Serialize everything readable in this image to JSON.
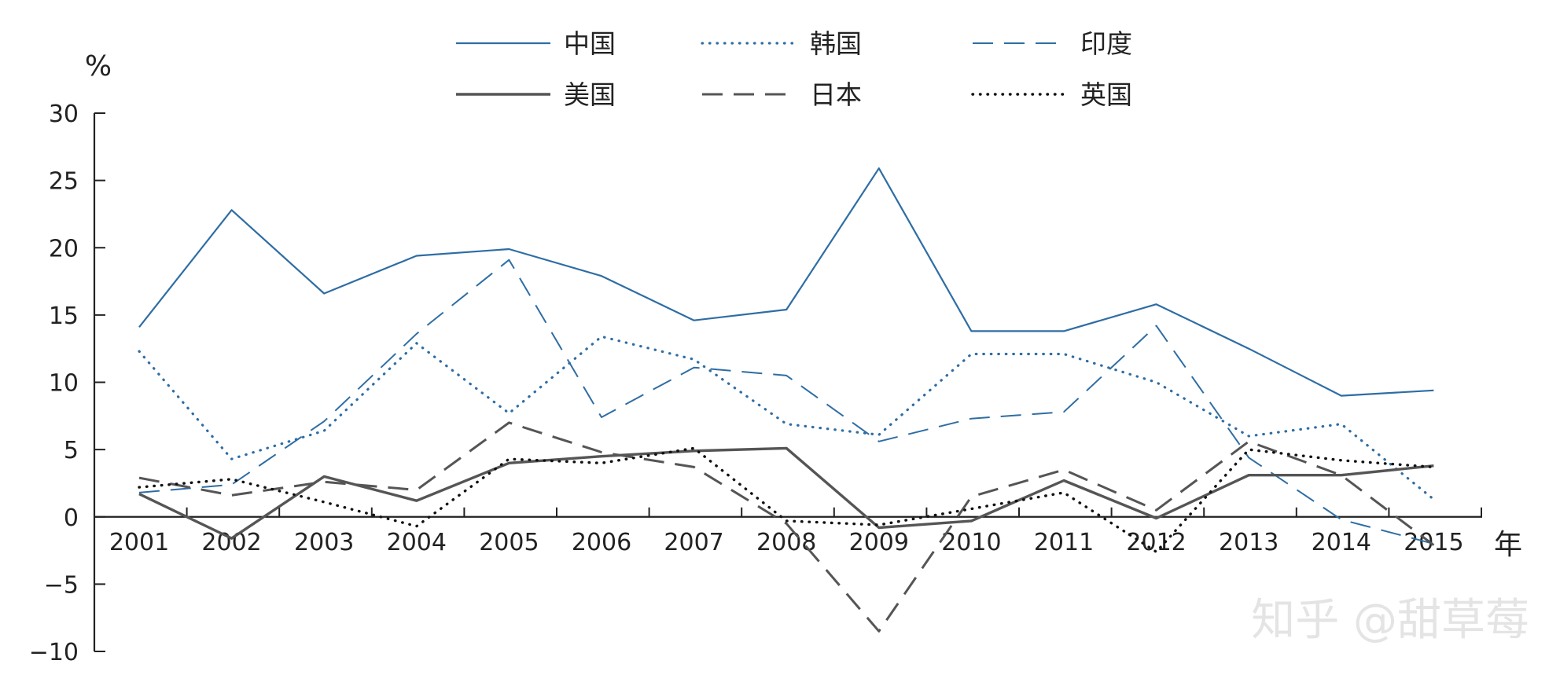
{
  "chart_data": {
    "type": "line",
    "title": "",
    "xlabel": "年",
    "ylabel": "%",
    "categories": [
      "2001",
      "2002",
      "2003",
      "2004",
      "2005",
      "2006",
      "2007",
      "2008",
      "2009",
      "2010",
      "2011",
      "2012",
      "2013",
      "2014",
      "2015"
    ],
    "ylim": [
      -10,
      30
    ],
    "yticks": [
      -10,
      -5,
      0,
      5,
      10,
      15,
      20,
      25,
      30
    ],
    "ytick_labels": [
      "−10",
      "−5",
      "0",
      "5",
      "10",
      "15",
      "20",
      "25",
      "30"
    ],
    "grid": false,
    "legend_position": "top",
    "series": [
      {
        "name": "中国",
        "color": "#2e6da4",
        "style": "solid",
        "values": [
          14.1,
          22.8,
          16.6,
          19.4,
          19.9,
          17.9,
          14.6,
          15.4,
          25.9,
          13.8,
          13.8,
          15.8,
          12.5,
          9.0,
          9.4
        ]
      },
      {
        "name": "韩国",
        "color": "#2e6da4",
        "style": "dotted",
        "values": [
          12.3,
          4.3,
          6.4,
          12.9,
          7.7,
          13.4,
          11.7,
          6.9,
          6.1,
          12.1,
          12.1,
          10.0,
          6.0,
          6.9,
          1.3
        ]
      },
      {
        "name": "印度",
        "color": "#2e6da4",
        "style": "dashed",
        "values": [
          1.8,
          2.4,
          7.1,
          13.6,
          19.1,
          7.4,
          11.1,
          10.5,
          5.6,
          7.3,
          7.8,
          14.2,
          4.4,
          -0.2,
          -2.0
        ]
      },
      {
        "name": "美国",
        "color": "#555555",
        "style": "solid",
        "values": [
          1.7,
          -1.6,
          3.0,
          1.2,
          4.0,
          4.5,
          4.9,
          5.1,
          -0.8,
          -0.3,
          2.7,
          -0.1,
          3.1,
          3.1,
          3.8
        ]
      },
      {
        "name": "日本",
        "color": "#555555",
        "style": "dashed",
        "values": [
          2.9,
          1.6,
          2.6,
          2.0,
          7.0,
          4.8,
          3.7,
          -0.5,
          -8.5,
          1.5,
          3.5,
          0.5,
          5.6,
          3.1,
          -2.1
        ]
      },
      {
        "name": "英国",
        "color": "#111111",
        "style": "dotted",
        "values": [
          2.2,
          2.8,
          1.1,
          -0.7,
          4.3,
          4.0,
          5.1,
          -0.3,
          -0.6,
          0.6,
          1.8,
          -2.6,
          5.0,
          4.2,
          3.7
        ]
      }
    ]
  },
  "watermark": "知乎 @甜草莓"
}
